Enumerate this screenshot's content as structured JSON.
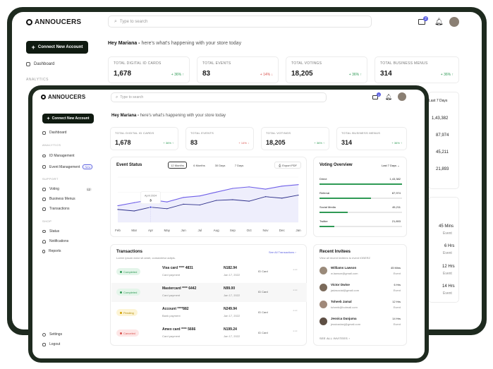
{
  "app": {
    "name": "ANNOUCERS"
  },
  "header": {
    "search_placeholder": "Type to search",
    "notif_count": "2"
  },
  "sidebar": {
    "connect_label": "Connect New Account",
    "dashboard": "Dashboard",
    "sec_analytics": "ANALYTICS",
    "id_management": "ID Management",
    "event_management": "Event Management",
    "new_badge": "New",
    "sec_support": "SUPPORT",
    "voting": "Voting",
    "voting_badge": "12",
    "business_menus": "Business Menus",
    "transactions": "Transactions",
    "sec_shop": "SHOP",
    "status": "Status",
    "notifications": "Notifications",
    "reports": "Reports",
    "settings": "Settings",
    "logout": "Logout"
  },
  "greeting": {
    "name": "Hey Mariana -",
    "text": "here's what's happening with your store today"
  },
  "stats": [
    {
      "label": "TOTAL DIGITAL ID CARDS",
      "value": "1,678",
      "change": "+ 36% ↑",
      "dir": "up"
    },
    {
      "label": "TOTAL EVENTS",
      "value": "83",
      "change": "+ 14% ↓",
      "dir": "down"
    },
    {
      "label": "TOTAL VOTINGS",
      "value": "18,205",
      "change": "+ 36% ↑",
      "dir": "up"
    },
    {
      "label": "TOTAL BUSINESS MENUS",
      "value": "314",
      "change": "+ 36% ↑",
      "dir": "up"
    }
  ],
  "event_status": {
    "title": "Event Status",
    "filters": [
      "12 Months",
      "6 Months",
      "30 Days",
      "7 Days"
    ],
    "export": "Export PDF",
    "tooltip_date": "April 2024",
    "tooltip_value": "3"
  },
  "chart_data": {
    "type": "line",
    "categories": [
      "Feb",
      "Mar",
      "Apr",
      "May",
      "Jun",
      "Jul",
      "Aug",
      "Sep",
      "Oct",
      "Nov",
      "Dec",
      "Jan"
    ],
    "series": [
      {
        "values": [
          2.2,
          2.6,
          3.0,
          2.7,
          3.3,
          3.5,
          4.0,
          4.5,
          4.7,
          4.4,
          4.8,
          5.0
        ]
      },
      {
        "values": [
          1.7,
          1.5,
          2.0,
          1.8,
          2.4,
          2.3,
          2.9,
          3.0,
          2.8,
          3.4,
          3.2,
          3.6
        ]
      }
    ],
    "ylim": [
      0,
      6
    ]
  },
  "voting_overview": {
    "title": "Voting Overview",
    "range": "Last 7 Days",
    "items": [
      {
        "label": "Direct",
        "value": "1,43,382",
        "fraction": 1.0
      },
      {
        "label": "Referral",
        "value": "87,974",
        "fraction": 0.62
      },
      {
        "label": "Social Media",
        "value": "45,211",
        "fraction": 0.34
      },
      {
        "label": "Twitter",
        "value": "21,893",
        "fraction": 0.18
      }
    ]
  },
  "transactions": {
    "title": "Transactions",
    "subtitle": "Lorem ipsum dolor sit amet, consectetur adipis.",
    "see_all": "See All Transactions",
    "rows": [
      {
        "status": "Completed",
        "kind": "green",
        "card": "Visa card **** 4831",
        "method": "Card payment",
        "amount": "N182.94",
        "date": "Jan 17, 2022",
        "type": "ID Card"
      },
      {
        "status": "Completed",
        "kind": "green",
        "card": "Mastercard **** 6442",
        "method": "Card payment",
        "amount": "N99.00",
        "date": "Jan 17, 2022",
        "type": "ID Card"
      },
      {
        "status": "Pending",
        "kind": "yellow",
        "card": "Account ****882",
        "method": "Bank payment",
        "amount": "N249.94",
        "date": "Jan 17, 2022",
        "type": "ID Card"
      },
      {
        "status": "Canceled",
        "kind": "red",
        "card": "Amex card **** 5666",
        "method": "Card payment",
        "amount": "N199.24",
        "date": "Jan 17, 2022",
        "type": "ID Card"
      }
    ]
  },
  "invitees": {
    "title": "Recent Invitees",
    "subtitle": "View all recent invitees to event IOBERZ",
    "see_all": "SEE ALL INVITEES",
    "rows": [
      {
        "name": "Williams Lawson",
        "email": "w.lawson@gmail.com",
        "time": "45 Mins",
        "tag": "Event"
      },
      {
        "name": "Victor Dwise",
        "email": "jadasocial@gmail.com",
        "time": "6 Hrs",
        "tag": "Event"
      },
      {
        "name": "Toheeb Jamal",
        "email": "toheeb@hotmail.com",
        "time": "12 Hrs",
        "tag": "Event"
      },
      {
        "name": "Jessica Danjuma",
        "email": "jessicadanj@gmail.com",
        "time": "14 Hrs",
        "tag": "Event"
      }
    ]
  }
}
